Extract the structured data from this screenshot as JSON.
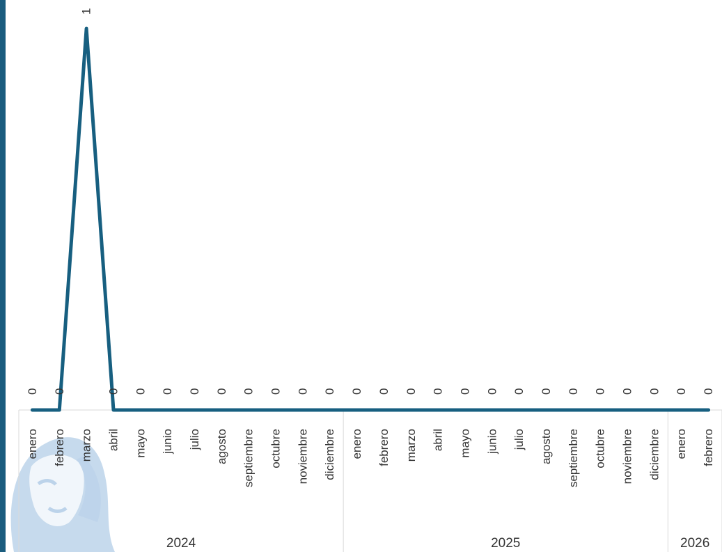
{
  "colors": {
    "line": "#175f80",
    "accent_bar": "#1a5c7e",
    "axis": "#d9d9d9",
    "watermark": "#bcd3ea"
  },
  "watermark": {
    "icon": "portrait-watermark-icon"
  },
  "chart_data": {
    "type": "line",
    "title": "",
    "xlabel": "",
    "ylabel": "",
    "ylim": [
      0,
      1
    ],
    "grid": false,
    "legend": "none",
    "categories": [
      "enero",
      "febrero",
      "marzo",
      "abril",
      "mayo",
      "junio",
      "julio",
      "agosto",
      "septiembre",
      "octubre",
      "noviembre",
      "diciembre",
      "enero",
      "febrero",
      "marzo",
      "abril",
      "mayo",
      "junio",
      "julio",
      "agosto",
      "septiembre",
      "octubre",
      "noviembre",
      "diciembre",
      "enero",
      "febrero"
    ],
    "year_groups": [
      {
        "label": "2024",
        "count": 12
      },
      {
        "label": "2025",
        "count": 12
      },
      {
        "label": "2026",
        "count": 2
      }
    ],
    "values": [
      0,
      0,
      1,
      0,
      0,
      0,
      0,
      0,
      0,
      0,
      0,
      0,
      0,
      0,
      0,
      0,
      0,
      0,
      0,
      0,
      0,
      0,
      0,
      0,
      0,
      0
    ],
    "data_labels": [
      "0",
      "0",
      "1",
      "0",
      "0",
      "0",
      "0",
      "0",
      "0",
      "0",
      "0",
      "0",
      "0",
      "0",
      "0",
      "0",
      "0",
      "0",
      "0",
      "0",
      "0",
      "0",
      "0",
      "0",
      "0",
      "0"
    ]
  }
}
